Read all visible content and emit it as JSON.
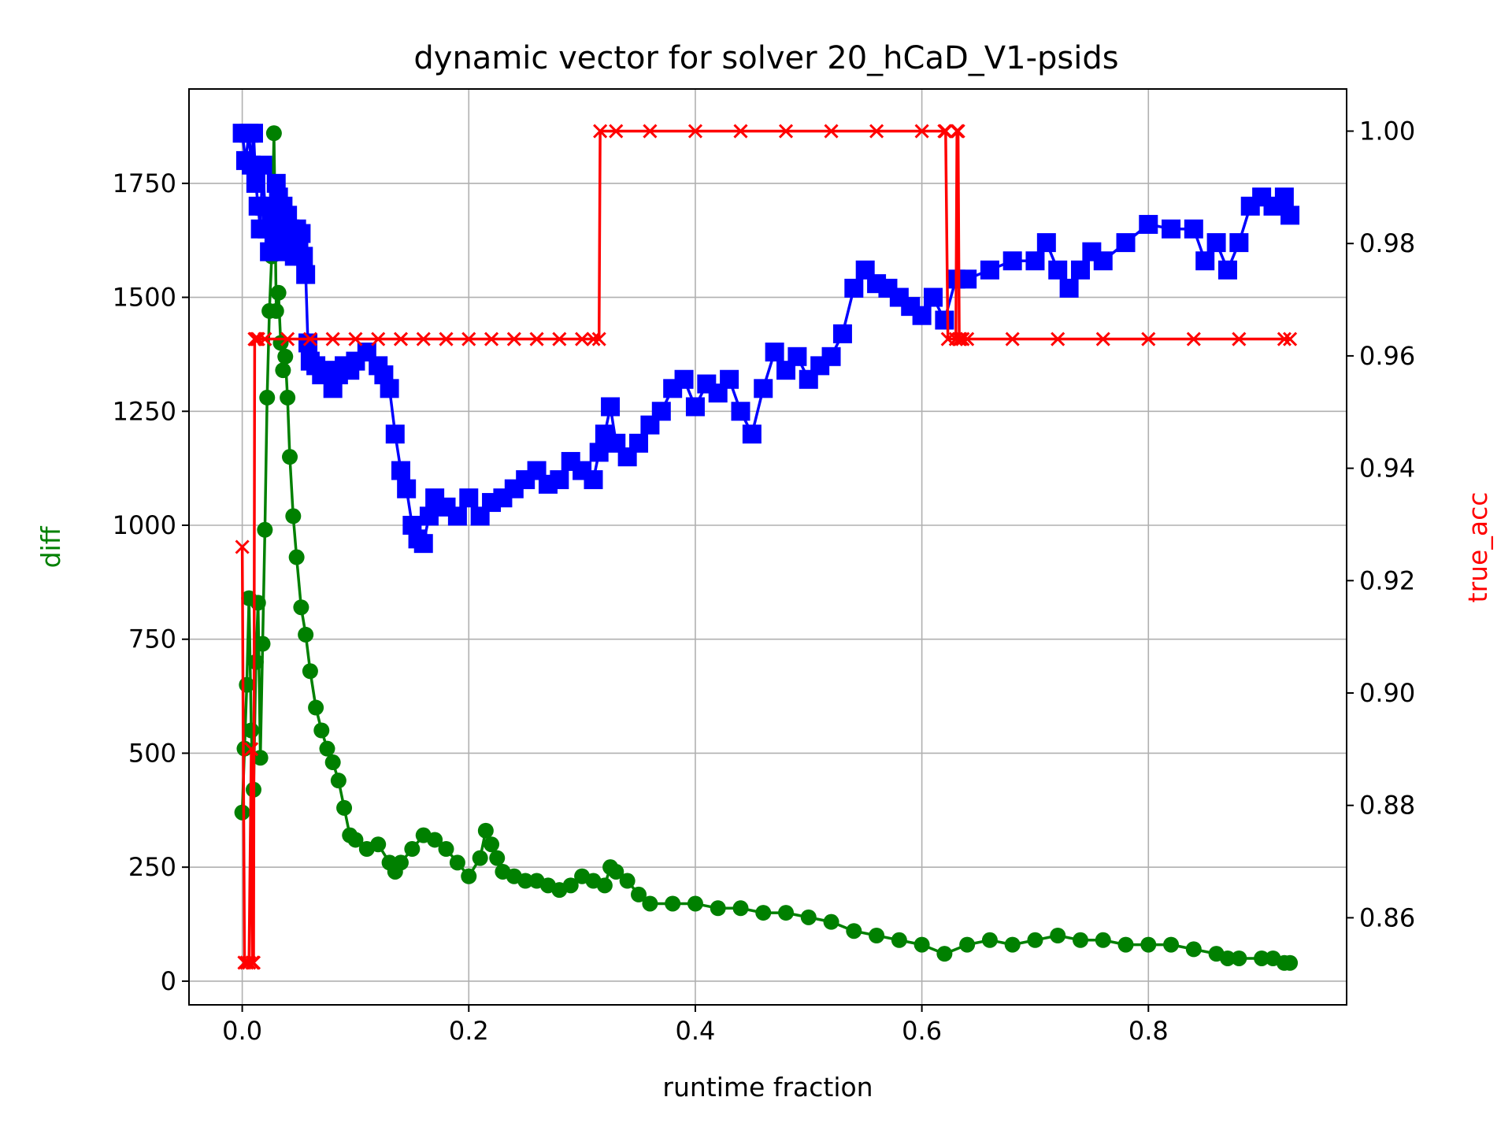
{
  "chart_data": {
    "type": "line",
    "title": "dynamic vector for solver 20_hCaD_V1-psids",
    "xlabel": "runtime fraction",
    "ylabel": "diff",
    "ylabel_right": "true_acc",
    "xlim": [
      -0.047,
      0.975
    ],
    "ylim": [
      -52,
      1957
    ],
    "ylim_right": [
      0.8445,
      1.0075
    ],
    "xticks": [
      0.0,
      0.2,
      0.4,
      0.6,
      0.8
    ],
    "xtick_labels": [
      "0.0",
      "0.2",
      "0.4",
      "0.6",
      "0.8"
    ],
    "yticks": [
      0,
      250,
      500,
      750,
      1000,
      1250,
      1500,
      1750
    ],
    "ytick_labels": [
      "0",
      "250",
      "500",
      "750",
      "1000",
      "1250",
      "1500",
      "1750"
    ],
    "yticks_right": [
      0.86,
      0.88,
      0.9,
      0.92,
      0.94,
      0.96,
      0.98,
      1.0
    ],
    "ytick_labels_right": [
      "0.86",
      "0.88",
      "0.90",
      "0.92",
      "0.94",
      "0.96",
      "0.98",
      "1.00"
    ],
    "grid": true,
    "colors": {
      "diff": "#008000",
      "blue": "#0000ff",
      "true_acc": "#ff0000"
    },
    "series": [
      {
        "color": "#008000",
        "marker": "circle",
        "axis": "left",
        "x": [
          0.0,
          0.002,
          0.004,
          0.006,
          0.008,
          0.01,
          0.012,
          0.014,
          0.016,
          0.018,
          0.02,
          0.022,
          0.024,
          0.026,
          0.028,
          0.03,
          0.032,
          0.034,
          0.036,
          0.038,
          0.04,
          0.042,
          0.045,
          0.048,
          0.052,
          0.056,
          0.06,
          0.065,
          0.07,
          0.075,
          0.08,
          0.085,
          0.09,
          0.095,
          0.1,
          0.11,
          0.12,
          0.13,
          0.135,
          0.14,
          0.15,
          0.16,
          0.17,
          0.18,
          0.19,
          0.2,
          0.21,
          0.215,
          0.22,
          0.225,
          0.23,
          0.24,
          0.25,
          0.26,
          0.27,
          0.28,
          0.29,
          0.3,
          0.31,
          0.32,
          0.325,
          0.33,
          0.34,
          0.35,
          0.36,
          0.38,
          0.4,
          0.42,
          0.44,
          0.46,
          0.48,
          0.5,
          0.52,
          0.54,
          0.56,
          0.58,
          0.6,
          0.62,
          0.64,
          0.66,
          0.68,
          0.7,
          0.72,
          0.74,
          0.76,
          0.78,
          0.8,
          0.82,
          0.84,
          0.86,
          0.87,
          0.88,
          0.9,
          0.91,
          0.92,
          0.925
        ],
        "values": [
          370,
          510,
          650,
          840,
          550,
          420,
          700,
          830,
          490,
          740,
          990,
          1280,
          1470,
          1590,
          1860,
          1470,
          1510,
          1400,
          1340,
          1370,
          1280,
          1150,
          1020,
          930,
          820,
          760,
          680,
          600,
          550,
          510,
          480,
          440,
          380,
          320,
          310,
          290,
          300,
          260,
          240,
          260,
          290,
          320,
          310,
          290,
          260,
          230,
          270,
          330,
          300,
          270,
          240,
          230,
          220,
          220,
          210,
          200,
          210,
          230,
          220,
          210,
          250,
          240,
          220,
          190,
          170,
          170,
          170,
          160,
          160,
          150,
          150,
          140,
          130,
          110,
          100,
          90,
          80,
          60,
          80,
          90,
          80,
          90,
          100,
          90,
          90,
          80,
          80,
          80,
          70,
          60,
          50,
          50,
          50,
          50,
          40,
          40
        ]
      },
      {
        "color": "#0000ff",
        "marker": "square",
        "axis": "left",
        "x": [
          0.0,
          0.003,
          0.006,
          0.008,
          0.01,
          0.012,
          0.014,
          0.016,
          0.018,
          0.02,
          0.022,
          0.024,
          0.026,
          0.028,
          0.03,
          0.032,
          0.034,
          0.036,
          0.038,
          0.04,
          0.042,
          0.044,
          0.046,
          0.048,
          0.05,
          0.052,
          0.054,
          0.056,
          0.058,
          0.06,
          0.065,
          0.07,
          0.075,
          0.08,
          0.085,
          0.09,
          0.095,
          0.1,
          0.11,
          0.12,
          0.125,
          0.13,
          0.135,
          0.14,
          0.145,
          0.15,
          0.155,
          0.16,
          0.165,
          0.17,
          0.18,
          0.19,
          0.2,
          0.21,
          0.22,
          0.23,
          0.24,
          0.25,
          0.26,
          0.27,
          0.28,
          0.29,
          0.3,
          0.31,
          0.315,
          0.32,
          0.325,
          0.33,
          0.34,
          0.35,
          0.36,
          0.37,
          0.38,
          0.39,
          0.4,
          0.41,
          0.42,
          0.43,
          0.44,
          0.45,
          0.46,
          0.47,
          0.48,
          0.49,
          0.5,
          0.51,
          0.52,
          0.53,
          0.54,
          0.55,
          0.56,
          0.57,
          0.58,
          0.59,
          0.6,
          0.61,
          0.62,
          0.63,
          0.64,
          0.66,
          0.68,
          0.7,
          0.71,
          0.72,
          0.73,
          0.74,
          0.75,
          0.76,
          0.78,
          0.8,
          0.82,
          0.84,
          0.85,
          0.86,
          0.87,
          0.88,
          0.89,
          0.9,
          0.91,
          0.92,
          0.925
        ],
        "values": [
          1860,
          1800,
          1860,
          1790,
          1860,
          1750,
          1700,
          1650,
          1790,
          1700,
          1650,
          1600,
          1680,
          1620,
          1750,
          1720,
          1650,
          1700,
          1600,
          1680,
          1650,
          1620,
          1590,
          1650,
          1600,
          1640,
          1590,
          1550,
          1400,
          1360,
          1350,
          1330,
          1340,
          1300,
          1330,
          1350,
          1340,
          1360,
          1380,
          1350,
          1330,
          1300,
          1200,
          1120,
          1080,
          1000,
          970,
          960,
          1020,
          1060,
          1040,
          1020,
          1060,
          1020,
          1050,
          1060,
          1080,
          1100,
          1120,
          1090,
          1100,
          1140,
          1120,
          1100,
          1160,
          1200,
          1260,
          1180,
          1150,
          1180,
          1220,
          1250,
          1300,
          1320,
          1260,
          1310,
          1290,
          1320,
          1250,
          1200,
          1300,
          1380,
          1340,
          1370,
          1320,
          1350,
          1370,
          1420,
          1520,
          1560,
          1530,
          1520,
          1500,
          1480,
          1460,
          1500,
          1450,
          1540,
          1540,
          1560,
          1580,
          1580,
          1620,
          1560,
          1520,
          1560,
          1600,
          1580,
          1620,
          1660,
          1650,
          1650,
          1580,
          1620,
          1560,
          1620,
          1700,
          1720,
          1700,
          1720,
          1680
        ]
      },
      {
        "name": "true_acc",
        "color": "#ff0000",
        "marker": "x",
        "axis": "right",
        "x": [
          0.0,
          0.002,
          0.004,
          0.006,
          0.008,
          0.009,
          0.01,
          0.011,
          0.012,
          0.013,
          0.014,
          0.02,
          0.04,
          0.06,
          0.08,
          0.1,
          0.12,
          0.14,
          0.16,
          0.18,
          0.2,
          0.22,
          0.24,
          0.26,
          0.28,
          0.3,
          0.31,
          0.315,
          0.316,
          0.33,
          0.36,
          0.4,
          0.44,
          0.48,
          0.52,
          0.56,
          0.6,
          0.62,
          0.621,
          0.623,
          0.63,
          0.631,
          0.632,
          0.633,
          0.634,
          0.636,
          0.64,
          0.68,
          0.72,
          0.76,
          0.8,
          0.84,
          0.88,
          0.92,
          0.925
        ],
        "values": [
          0.926,
          0.852,
          0.852,
          0.852,
          0.89,
          0.852,
          0.852,
          0.963,
          0.963,
          0.963,
          0.963,
          0.963,
          0.963,
          0.963,
          0.963,
          0.963,
          0.963,
          0.963,
          0.963,
          0.963,
          0.963,
          0.963,
          0.963,
          0.963,
          0.963,
          0.963,
          0.963,
          0.963,
          1.0,
          1.0,
          1.0,
          1.0,
          1.0,
          1.0,
          1.0,
          1.0,
          1.0,
          1.0,
          1.0,
          0.963,
          0.963,
          1.0,
          1.0,
          0.963,
          0.963,
          0.963,
          0.963,
          0.963,
          0.963,
          0.963,
          0.963,
          0.963,
          0.963,
          0.963,
          0.963
        ]
      }
    ]
  }
}
